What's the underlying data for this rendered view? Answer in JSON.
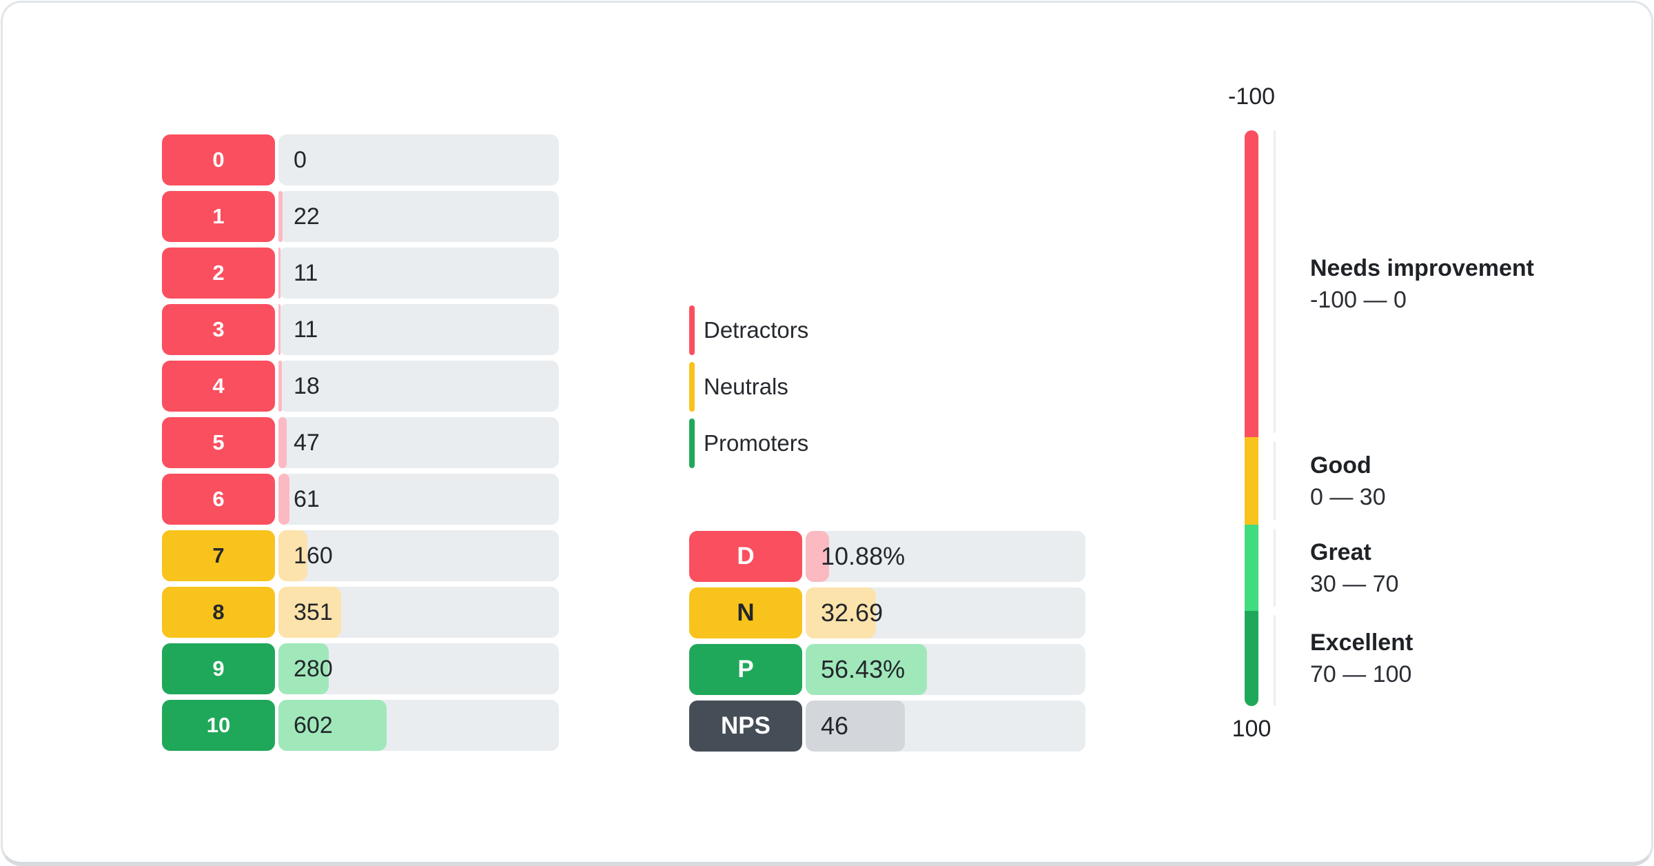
{
  "colors": {
    "detractor": "#fa4f5f",
    "detractor_light": "#fbb9c2",
    "neutral": "#f8c31c",
    "neutral_light": "#fce3ab",
    "promoter": "#20a85a",
    "promoter_light": "#a0e8ba",
    "great": "#40dc7e",
    "nps": "#454e57",
    "nps_light": "#d3d7db",
    "track": "#e9edf0",
    "dark_text": "#23262b",
    "white_text": "#ffffff"
  },
  "legend": {
    "items": [
      {
        "label": "Detractors",
        "group": "detractor"
      },
      {
        "label": "Neutrals",
        "group": "neutral"
      },
      {
        "label": "Promoters",
        "group": "promoter"
      }
    ]
  },
  "chart_data": [
    {
      "type": "bar",
      "name": "score-distribution",
      "orientation": "horizontal",
      "categories": [
        "0",
        "1",
        "2",
        "3",
        "4",
        "5",
        "6",
        "7",
        "8",
        "9",
        "10"
      ],
      "values": [
        0,
        22,
        11,
        11,
        18,
        47,
        61,
        160,
        351,
        280,
        602
      ],
      "groups": [
        "detractor",
        "detractor",
        "detractor",
        "detractor",
        "detractor",
        "detractor",
        "detractor",
        "neutral",
        "neutral",
        "promoter",
        "promoter"
      ],
      "total": 1563,
      "xlim": [
        0,
        1563
      ]
    },
    {
      "type": "bar",
      "name": "nps-summary",
      "orientation": "horizontal",
      "categories": [
        "D",
        "N",
        "P",
        "NPS"
      ],
      "values": [
        10.88,
        32.69,
        56.43,
        46
      ],
      "value_labels": [
        "10.88%",
        "32.69",
        "56.43%",
        "46"
      ],
      "groups": [
        "detractor",
        "neutral",
        "promoter",
        "nps"
      ],
      "scale_max": 130
    },
    {
      "type": "gauge",
      "name": "nps-scale",
      "axis": {
        "top": "-100",
        "bottom": "100"
      },
      "segments": [
        {
          "label": "Needs improvement",
          "range_text": "-100 — 0",
          "from": -100,
          "to": 0,
          "color_key": "detractor",
          "height_frac": 0.533
        },
        {
          "label": "Good",
          "range_text": "0 — 30",
          "from": 0,
          "to": 30,
          "color_key": "neutral",
          "height_frac": 0.152
        },
        {
          "label": "Great",
          "range_text": "30 — 70",
          "from": 30,
          "to": 70,
          "color_key": "great",
          "height_frac": 0.15
        },
        {
          "label": "Excellent",
          "range_text": "70 — 100",
          "from": 70,
          "to": 100,
          "color_key": "promoter",
          "height_frac": 0.165
        }
      ]
    }
  ]
}
